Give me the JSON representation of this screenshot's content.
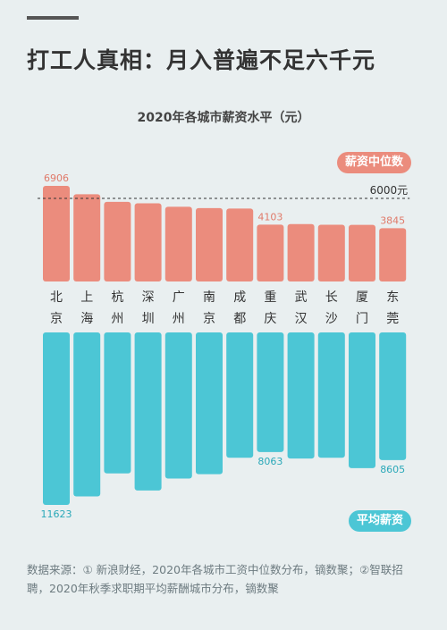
{
  "headline": "打工人真相：月入普遍不足六千元",
  "source": "数据来源：① 新浪财经，2020年各城市工资中位数分布，镝数聚；②智联招聘，2020年秋季求职期平均薪酬城市分布，镝数聚",
  "colors": {
    "median": "#eb8c7d",
    "average": "#4cc6d5",
    "text": "#333333",
    "accent_text": "#e07a6a"
  },
  "chart_data": {
    "type": "bar",
    "title": "2020年各城市薪资水平（元）",
    "categories": [
      [
        "北",
        "京"
      ],
      [
        "上",
        "海"
      ],
      [
        "杭",
        "州"
      ],
      [
        "深",
        "圳"
      ],
      [
        "广",
        "州"
      ],
      [
        "南",
        "京"
      ],
      [
        "成",
        "都"
      ],
      [
        "重",
        "庆"
      ],
      [
        "武",
        "汉"
      ],
      [
        "长",
        "沙"
      ],
      [
        "厦",
        "门"
      ],
      [
        "东",
        "莞"
      ]
    ],
    "series": [
      {
        "name": "薪资中位数",
        "values": [
          6906,
          6300,
          5750,
          5650,
          5400,
          5300,
          5270,
          4103,
          4150,
          4100,
          4090,
          3845
        ],
        "labels": [
          "6906",
          "",
          "",
          "",
          "",
          "",
          "",
          "4103",
          "",
          "",
          "",
          "3845"
        ]
      },
      {
        "name": "平均薪资",
        "values": [
          11623,
          11050,
          9500,
          10650,
          9850,
          9550,
          8450,
          8063,
          8500,
          8450,
          9150,
          8605
        ],
        "labels": [
          "11623",
          "",
          "",
          "",
          "",
          "",
          "",
          "8063",
          "",
          "",
          "",
          "8605"
        ]
      }
    ],
    "reference_line": {
      "value": 6000,
      "label": "6000元"
    }
  }
}
